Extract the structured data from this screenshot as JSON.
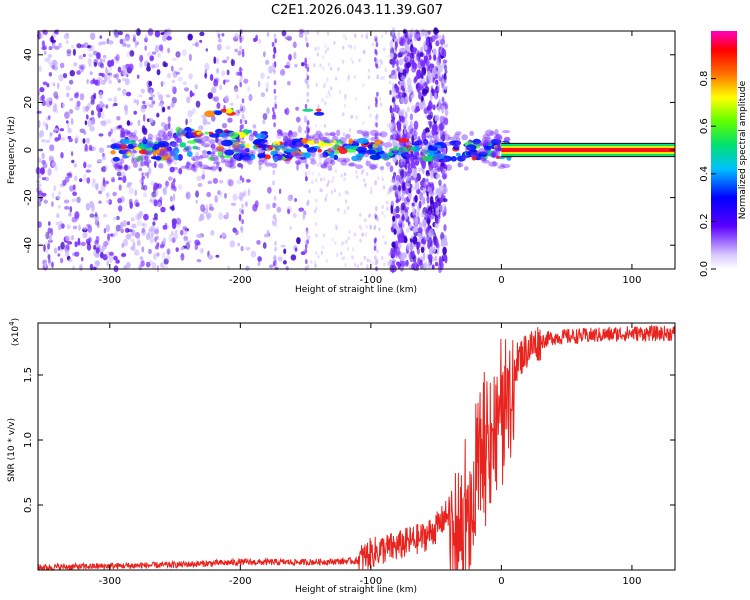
{
  "title": "C2E1.2026.043.11.39.G07",
  "colors": {
    "axis": "#000000",
    "snr_line": "#e8221d",
    "spec_bg": "#ffffff",
    "spec_low": "#c8b4ff",
    "spec_mid": "#7a2cff",
    "spec_dark": "#3a00c8"
  },
  "colorbar": {
    "label": "Normalized spectral amplitude",
    "ticks": [
      "0.0",
      "0.2",
      "0.4",
      "0.6",
      "0.8"
    ],
    "range": [
      0,
      1
    ]
  },
  "chart_data": [
    {
      "type": "heatmap",
      "title": "C2E1.2026.043.11.39.G07",
      "xlabel": "Height of straight line (km)",
      "ylabel": "Frequency (Hz)",
      "xlim": [
        -355,
        133
      ],
      "ylim": [
        -50,
        50
      ],
      "xticks": [
        -300,
        -200,
        -100,
        0,
        100
      ],
      "xtick_labels": [
        "-300",
        "-200",
        "-100",
        "0",
        "100"
      ],
      "yticks": [
        -40,
        -20,
        0,
        20,
        40
      ],
      "ytick_labels": [
        "-40",
        "-20",
        "0",
        "20",
        "40"
      ],
      "features": [
        {
          "name": "steady carrier",
          "x_range": [
            0,
            133
          ],
          "freq": 0,
          "amplitude": 1.0
        },
        {
          "name": "broadband noise strip",
          "x_range": [
            -85,
            -42
          ],
          "freq_range": [
            -50,
            50
          ],
          "amplitude": 0.25
        },
        {
          "name": "scattered noise",
          "x_range": [
            -355,
            -150
          ],
          "freq_range": [
            -50,
            50
          ],
          "amplitude": 0.2
        }
      ]
    },
    {
      "type": "line",
      "xlabel": "Height of straight line (km)",
      "ylabel": "SNR (10 * v/v)",
      "y_scale_label": "(x10",
      "y_scale_exp": "4",
      "xlim": [
        -355,
        133
      ],
      "ylim": [
        0,
        1.9
      ],
      "xticks": [
        -300,
        -200,
        -100,
        0,
        100
      ],
      "xtick_labels": [
        "-300",
        "-200",
        "-100",
        "0",
        "100"
      ],
      "yticks": [
        0.5,
        1.0,
        1.5
      ],
      "ytick_labels": [
        "0.5",
        "1.0",
        "1.5"
      ],
      "series": [
        {
          "name": "SNR",
          "x": [
            -355,
            -300,
            -250,
            -200,
            -150,
            -110,
            -100,
            -90,
            -80,
            -70,
            -60,
            -50,
            -40,
            -35,
            -30,
            -25,
            -22,
            -20,
            -18,
            -15,
            -10,
            -5,
            0,
            5,
            10,
            20,
            30,
            40,
            60,
            80,
            100,
            133
          ],
          "y": [
            0.02,
            0.03,
            0.04,
            0.06,
            0.06,
            0.07,
            0.13,
            0.16,
            0.18,
            0.22,
            0.25,
            0.32,
            0.45,
            0.55,
            0.55,
            0.72,
            0.6,
            0.85,
            0.95,
            1.1,
            1.25,
            1.35,
            1.38,
            1.48,
            1.58,
            1.7,
            1.76,
            1.79,
            1.8,
            1.81,
            1.82,
            1.82
          ]
        }
      ]
    }
  ]
}
